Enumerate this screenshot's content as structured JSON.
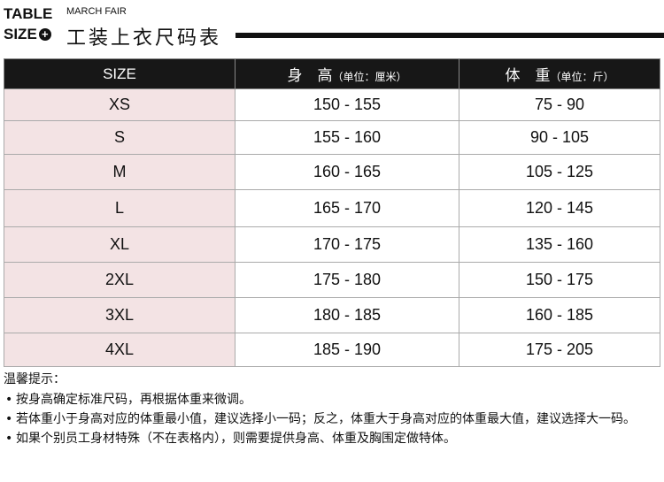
{
  "header": {
    "line1": "TABLE",
    "line2": "SIZE",
    "subtitle": "MARCH FAIR",
    "title": "工装上衣尺码表",
    "icon": "plus-circle-icon"
  },
  "table": {
    "columns": [
      {
        "label": "SIZE",
        "unit": ""
      },
      {
        "label": "身　高",
        "unit": "（单位：厘米）"
      },
      {
        "label": "体　重",
        "unit": "（单位：斤）"
      }
    ],
    "rows": [
      [
        "XS",
        "150 - 155",
        "75 - 90"
      ],
      [
        "S",
        "155 - 160",
        "90 - 105"
      ],
      [
        "M",
        "160 - 165",
        "105 - 125"
      ],
      [
        "L",
        "165 - 170",
        "120 - 145"
      ],
      [
        "XL",
        "170 - 175",
        "135 - 160"
      ],
      [
        "2XL",
        "175 - 180",
        "150 - 175"
      ],
      [
        "3XL",
        "180 - 185",
        "160 - 185"
      ],
      [
        "4XL",
        "185 - 190",
        "175 - 205"
      ]
    ],
    "heights": [
      36,
      38,
      40,
      42,
      40,
      40,
      40,
      38
    ]
  },
  "colors": {
    "header_bg": "#171717",
    "size_bg": "#f3e3e4"
  },
  "notes": {
    "title": "温馨提示：",
    "items": [
      "按身高确定标准尺码，再根据体重来微调。",
      "若体重小于身高对应的体重最小值，建议选择小一码；反之，体重大于身高对应的体重最大值，建议选择大一码。",
      "如果个别员工身材特殊（不在表格内），则需要提供身高、体重及胸围定做特体。"
    ]
  }
}
